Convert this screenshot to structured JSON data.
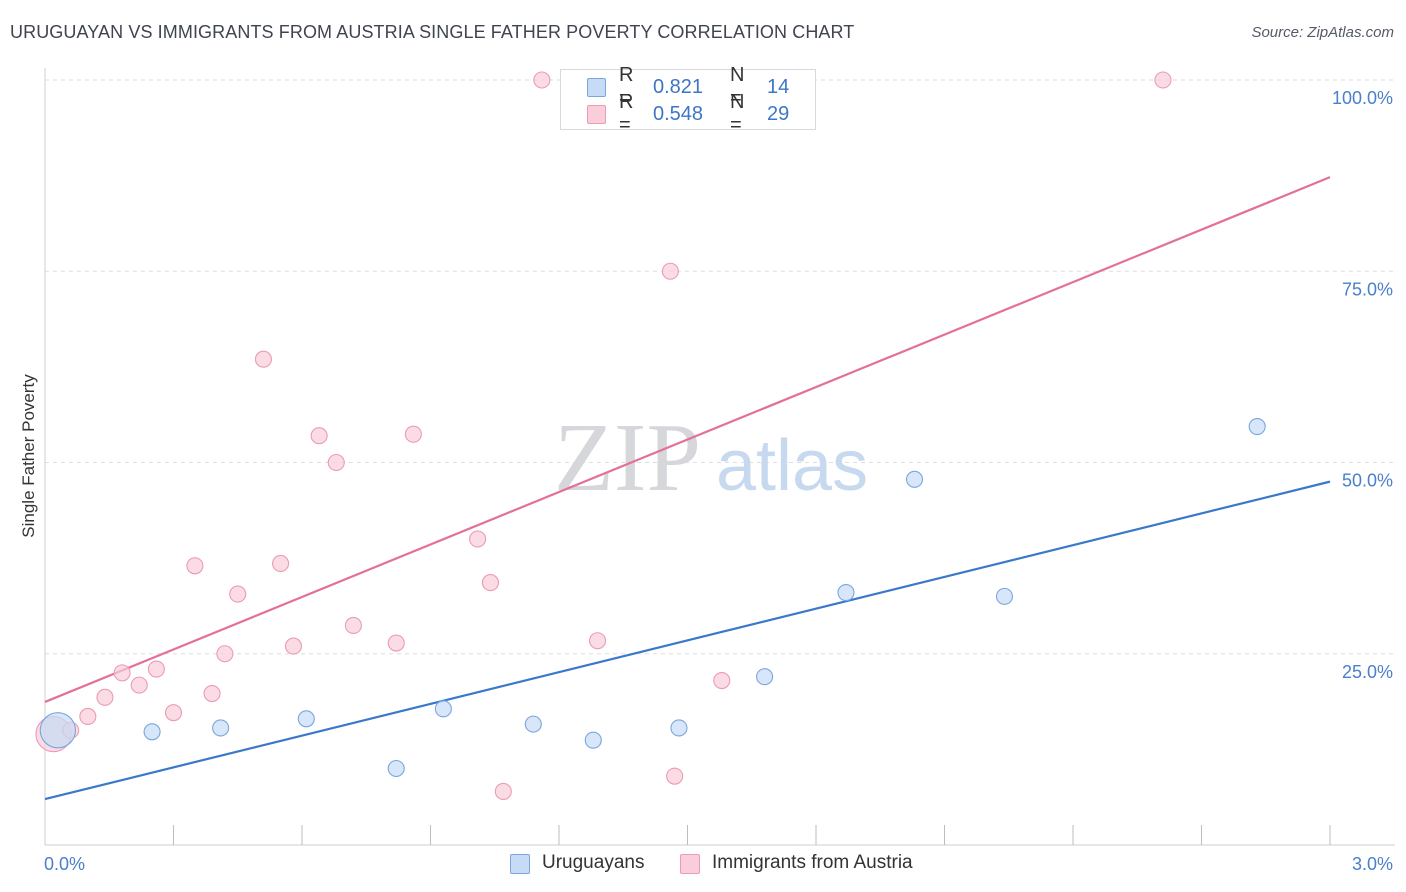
{
  "title": "URUGUAYAN VS IMMIGRANTS FROM AUSTRIA SINGLE FATHER POVERTY CORRELATION CHART",
  "source": "Source: ZipAtlas.com",
  "watermark": {
    "zip": "ZIP",
    "atlas": "atlas"
  },
  "colors": {
    "blue_fill": "#c6dbf5",
    "blue_stroke": "#7aa6dc",
    "blue_line": "#3a78cc",
    "pink_fill": "#f9cdda",
    "pink_stroke": "#ec9ab5",
    "pink_line": "#e3709a",
    "tick_text": "#4a80c9",
    "grid": "#dedede"
  },
  "legend": {
    "rows": [
      {
        "r_label": "R =",
        "r_value": "0.821",
        "n_label": "N =",
        "n_value": "14"
      },
      {
        "r_label": "R =",
        "r_value": "0.548",
        "n_label": "N =",
        "n_value": "29"
      }
    ]
  },
  "bottom_legend": [
    "Uruguayans",
    "Immigrants from Austria"
  ],
  "chart_data": {
    "type": "scatter",
    "title": "URUGUAYAN VS IMMIGRANTS FROM AUSTRIA SINGLE FATHER POVERTY CORRELATION CHART",
    "xlabel": "",
    "ylabel": "Single Father Poverty",
    "xlim": [
      0,
      3.0
    ],
    "ylim": [
      0,
      100
    ],
    "x_tick_labels": [
      "0.0%",
      "3.0%"
    ],
    "y_ticks": [
      25,
      50,
      75,
      100
    ],
    "y_tick_labels": [
      "25.0%",
      "50.0%",
      "75.0%",
      "100.0%"
    ],
    "grid": true,
    "legend_position": "top-center",
    "series": [
      {
        "name": "Uruguayans",
        "points": [
          [
            0.03,
            15.0,
            2.2
          ],
          [
            0.25,
            14.8,
            1
          ],
          [
            0.41,
            15.3,
            1
          ],
          [
            0.61,
            16.5,
            1
          ],
          [
            0.82,
            10.0,
            1
          ],
          [
            0.93,
            17.8,
            1
          ],
          [
            1.14,
            15.8,
            1
          ],
          [
            1.28,
            13.7,
            1
          ],
          [
            1.48,
            15.3,
            1
          ],
          [
            1.68,
            22.0,
            1
          ],
          [
            1.87,
            33.0,
            1
          ],
          [
            2.03,
            47.8,
            1
          ],
          [
            2.24,
            32.5,
            1
          ],
          [
            2.83,
            54.7,
            1
          ]
        ],
        "trend": [
          [
            0,
            6.0
          ],
          [
            3.0,
            47.5
          ]
        ]
      },
      {
        "name": "Immigrants from Austria",
        "points": [
          [
            0.02,
            14.5,
            2.2
          ],
          [
            0.06,
            15.0,
            1
          ],
          [
            0.1,
            16.8,
            1
          ],
          [
            0.14,
            19.3,
            1
          ],
          [
            0.18,
            22.5,
            1
          ],
          [
            0.22,
            20.9,
            1
          ],
          [
            0.26,
            23.0,
            1
          ],
          [
            0.3,
            17.3,
            1
          ],
          [
            0.35,
            36.5,
            1
          ],
          [
            0.39,
            19.8,
            1
          ],
          [
            0.42,
            25.0,
            1
          ],
          [
            0.45,
            32.8,
            1
          ],
          [
            0.51,
            63.5,
            1
          ],
          [
            0.55,
            36.8,
            1
          ],
          [
            0.58,
            26.0,
            1
          ],
          [
            0.64,
            53.5,
            1
          ],
          [
            0.68,
            50.0,
            1
          ],
          [
            0.72,
            28.7,
            1
          ],
          [
            0.82,
            26.4,
            1
          ],
          [
            0.86,
            53.7,
            1
          ],
          [
            1.01,
            40.0,
            1
          ],
          [
            1.04,
            34.3,
            1
          ],
          [
            1.07,
            7.0,
            1
          ],
          [
            1.16,
            100.0,
            1
          ],
          [
            1.29,
            26.7,
            1
          ],
          [
            1.46,
            75.0,
            1
          ],
          [
            1.47,
            9.0,
            1
          ],
          [
            1.58,
            21.5,
            1
          ],
          [
            2.61,
            100.0,
            1
          ]
        ],
        "trend": [
          [
            0,
            18.7
          ],
          [
            3.0,
            87.3
          ]
        ]
      }
    ]
  }
}
